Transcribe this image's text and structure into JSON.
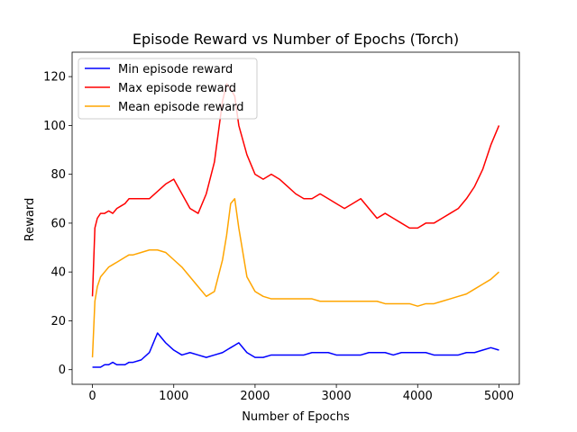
{
  "chart_data": {
    "type": "line",
    "title": "Episode Reward vs Number of Epochs (Torch)",
    "xlabel": "Number of Epochs",
    "ylabel": "Reward",
    "xlim": [
      -250,
      5250
    ],
    "ylim": [
      -6,
      130
    ],
    "x_ticks": [
      0,
      1000,
      2000,
      3000,
      4000,
      5000
    ],
    "x_tick_labels": [
      "0",
      "1000",
      "2000",
      "3000",
      "4000",
      "5000"
    ],
    "y_ticks": [
      0,
      20,
      40,
      60,
      80,
      100,
      120
    ],
    "y_tick_labels": [
      "0",
      "20",
      "40",
      "60",
      "80",
      "100",
      "120"
    ],
    "grid": false,
    "legend_position": "top-left",
    "x": [
      0,
      30,
      60,
      100,
      150,
      200,
      250,
      300,
      350,
      400,
      450,
      500,
      600,
      700,
      800,
      900,
      1000,
      1100,
      1200,
      1300,
      1400,
      1500,
      1600,
      1650,
      1700,
      1750,
      1800,
      1900,
      2000,
      2100,
      2200,
      2300,
      2400,
      2500,
      2600,
      2700,
      2800,
      2900,
      3000,
      3100,
      3200,
      3300,
      3400,
      3500,
      3600,
      3700,
      3800,
      3900,
      4000,
      4100,
      4200,
      4300,
      4400,
      4500,
      4600,
      4700,
      4800,
      4900,
      5000
    ],
    "series": [
      {
        "name": "Min episode reward",
        "color": "#0000ff",
        "values": [
          1,
          1,
          1,
          1,
          2,
          2,
          3,
          2,
          2,
          2,
          3,
          3,
          4,
          7,
          15,
          11,
          8,
          6,
          7,
          6,
          5,
          6,
          7,
          8,
          9,
          10,
          11,
          7,
          5,
          5,
          6,
          6,
          6,
          6,
          6,
          7,
          7,
          7,
          6,
          6,
          6,
          6,
          7,
          7,
          7,
          6,
          7,
          7,
          7,
          7,
          6,
          6,
          6,
          6,
          7,
          7,
          8,
          9,
          8
        ]
      },
      {
        "name": "Max episode reward",
        "color": "#ff0000",
        "values": [
          30,
          58,
          62,
          64,
          64,
          65,
          64,
          66,
          67,
          68,
          70,
          70,
          70,
          70,
          73,
          76,
          78,
          72,
          66,
          64,
          72,
          85,
          110,
          117,
          115,
          112,
          100,
          88,
          80,
          78,
          80,
          78,
          75,
          72,
          70,
          70,
          72,
          70,
          68,
          66,
          68,
          70,
          66,
          62,
          64,
          62,
          60,
          58,
          58,
          60,
          60,
          62,
          64,
          66,
          70,
          75,
          82,
          92,
          100
        ]
      },
      {
        "name": "Mean episode reward",
        "color": "#ffa500",
        "values": [
          5,
          28,
          34,
          38,
          40,
          42,
          43,
          44,
          45,
          46,
          47,
          47,
          48,
          49,
          49,
          48,
          45,
          42,
          38,
          34,
          30,
          32,
          45,
          55,
          68,
          70,
          58,
          38,
          32,
          30,
          29,
          29,
          29,
          29,
          29,
          29,
          28,
          28,
          28,
          28,
          28,
          28,
          28,
          28,
          27,
          27,
          27,
          27,
          26,
          27,
          27,
          28,
          29,
          30,
          31,
          33,
          35,
          37,
          40
        ]
      }
    ]
  }
}
